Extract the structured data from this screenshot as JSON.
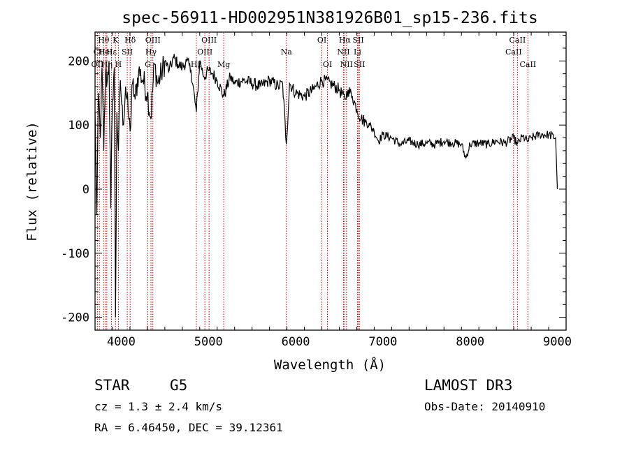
{
  "chart_data": {
    "type": "line",
    "title": "spec-56911-HD002951N381926B01_sp15-236.fits",
    "xlabel": "Wavelength (Å)",
    "ylabel": "Flux (relative)",
    "xlim": [
      3700,
      9100
    ],
    "ylim": [
      -220,
      245
    ],
    "x_ticks": [
      4000,
      5000,
      6000,
      7000,
      8000,
      9000
    ],
    "y_ticks": [
      -200,
      -100,
      0,
      100,
      200
    ],
    "series": [
      {
        "name": "flux",
        "color": "#000000",
        "x": [
          3700,
          3720,
          3740,
          3760,
          3780,
          3800,
          3820,
          3840,
          3860,
          3880,
          3900,
          3920,
          3935,
          3950,
          3968,
          3990,
          4020,
          4050,
          4080,
          4102,
          4130,
          4160,
          4200,
          4250,
          4300,
          4340,
          4380,
          4420,
          4460,
          4500,
          4550,
          4600,
          4650,
          4700,
          4750,
          4800,
          4861,
          4900,
          4950,
          5000,
          5050,
          5100,
          5175,
          5250,
          5300,
          5400,
          5500,
          5600,
          5700,
          5800,
          5850,
          5893,
          5930,
          6000,
          6100,
          6200,
          6300,
          6400,
          6500,
          6563,
          6600,
          6650,
          6700,
          6750,
          6800,
          6850,
          6900,
          6950,
          7000,
          7100,
          7200,
          7300,
          7400,
          7500,
          7600,
          7700,
          7800,
          7900,
          7950,
          8000,
          8100,
          8200,
          8300,
          8400,
          8500,
          8542,
          8600,
          8662,
          8700,
          8800,
          8900,
          8980,
          9000
        ],
        "values": [
          120,
          -40,
          150,
          80,
          190,
          60,
          180,
          170,
          200,
          -30,
          140,
          190,
          -200,
          120,
          60,
          170,
          100,
          160,
          120,
          90,
          165,
          140,
          185,
          170,
          150,
          110,
          195,
          165,
          180,
          200,
          185,
          205,
          195,
          190,
          200,
          185,
          120,
          200,
          175,
          185,
          180,
          170,
          145,
          175,
          165,
          170,
          165,
          160,
          170,
          160,
          165,
          70,
          165,
          150,
          145,
          155,
          170,
          165,
          155,
          140,
          155,
          145,
          125,
          110,
          105,
          100,
          90,
          75,
          85,
          80,
          70,
          75,
          70,
          72,
          70,
          75,
          72,
          70,
          48,
          70,
          72,
          70,
          75,
          72,
          80,
          70,
          82,
          75,
          80,
          85,
          85,
          80,
          0
        ]
      }
    ],
    "lines": [
      {
        "label": "Hθ",
        "x": 3798,
        "row": 1
      },
      {
        "label": "CII",
        "x": 3750,
        "row": 2
      },
      {
        "label": "OII",
        "x": 3727,
        "row": 3
      },
      {
        "label": "K",
        "x": 3934,
        "row": 1
      },
      {
        "label": "Hε",
        "x": 3889,
        "row": 2
      },
      {
        "label": "H",
        "x": 3968,
        "row": 3
      },
      {
        "label": "HeI",
        "x": 3820,
        "row": 2
      },
      {
        "label": "Hη",
        "x": 3835,
        "row": 3
      },
      {
        "label": "Hδ",
        "x": 4102,
        "row": 1
      },
      {
        "label": "SII",
        "x": 4069,
        "row": 2
      },
      {
        "label": "OIII",
        "x": 4363,
        "row": 1
      },
      {
        "label": "Hγ",
        "x": 4341,
        "row": 2
      },
      {
        "label": "G",
        "x": 4305,
        "row": 3
      },
      {
        "label": "OIII",
        "x": 5007,
        "row": 1
      },
      {
        "label": "OIII",
        "x": 4959,
        "row": 2
      },
      {
        "label": "Hβ",
        "x": 4861,
        "row": 3
      },
      {
        "label": "Mg",
        "x": 5175,
        "row": 3
      },
      {
        "label": "Na",
        "x": 5893,
        "row": 2
      },
      {
        "label": "OI",
        "x": 6300,
        "row": 1
      },
      {
        "label": "OI",
        "x": 6364,
        "row": 3
      },
      {
        "label": "Hα",
        "x": 6563,
        "row": 1
      },
      {
        "label": "SII",
        "x": 6717,
        "row": 1
      },
      {
        "label": "NII",
        "x": 6548,
        "row": 2
      },
      {
        "label": "Li",
        "x": 6708,
        "row": 2
      },
      {
        "label": "NII",
        "x": 6583,
        "row": 3
      },
      {
        "label": "SII",
        "x": 6731,
        "row": 3
      },
      {
        "label": "CaII",
        "x": 8542,
        "row": 1
      },
      {
        "label": "CaII",
        "x": 8498,
        "row": 2
      },
      {
        "label": "CaII",
        "x": 8662,
        "row": 3
      }
    ]
  },
  "info": {
    "object": "STAR",
    "subclass": "G5",
    "survey": "LAMOST DR3",
    "cz": "cz = 1.3 ± 2.4 km/s",
    "obs_date": "Obs-Date: 20140910",
    "coords": "RA =   6.46450, DEC =  39.12361"
  }
}
